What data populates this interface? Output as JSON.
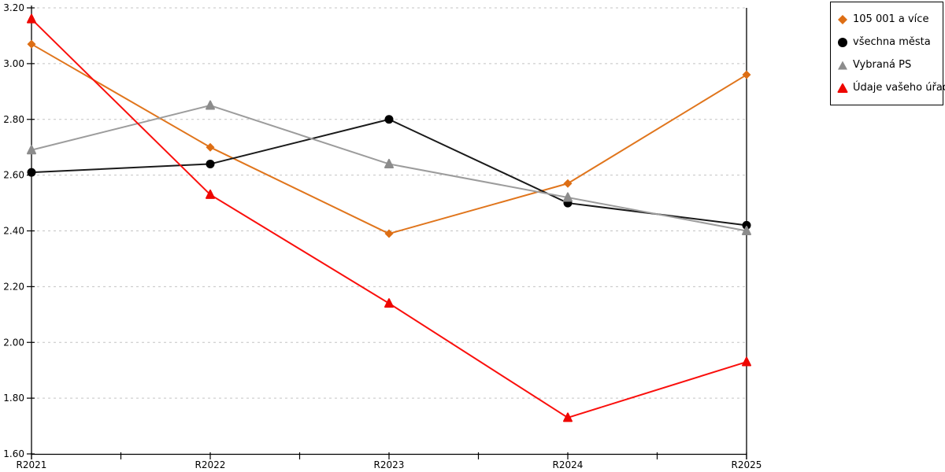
{
  "chart_data": {
    "type": "line",
    "title": "",
    "xlabel": "",
    "ylabel": "",
    "categories": [
      "R2021",
      "R2022",
      "R2023",
      "R2024",
      "R2025"
    ],
    "series": [
      {
        "name": "105 001 a více",
        "marker": "diamond",
        "color": "#E0751C",
        "marker_color": "#DD6E14",
        "values": [
          3.07,
          2.7,
          2.39,
          2.57,
          2.96
        ]
      },
      {
        "name": "všechna města",
        "marker": "circle",
        "color": "#1A1A1A",
        "marker_color": "#000000",
        "values": [
          2.61,
          2.64,
          2.8,
          2.5,
          2.42
        ]
      },
      {
        "name": "Vybraná PS",
        "marker": "triangle",
        "color": "#9C9C9C",
        "marker_color": "#8C8C8C",
        "values": [
          2.69,
          2.85,
          2.64,
          2.52,
          2.4
        ]
      },
      {
        "name": "Údaje vašeho úřadu",
        "marker": "triangle",
        "color": "#FA0F0C",
        "marker_color": "#EE0600",
        "values": [
          3.16,
          2.53,
          2.14,
          1.73,
          1.93
        ]
      }
    ],
    "ylim": [
      1.6,
      3.2
    ],
    "ytick_step": 0.2,
    "ytick_labels": [
      "1.60",
      "1.80",
      "2.00",
      "2.20",
      "2.40",
      "2.60",
      "2.80",
      "3.00",
      "3.20"
    ],
    "grid": "horizontal-dashed",
    "gridline_color": "#C3C3C3",
    "axis_color": "#000000",
    "legend_position": "top-right"
  }
}
